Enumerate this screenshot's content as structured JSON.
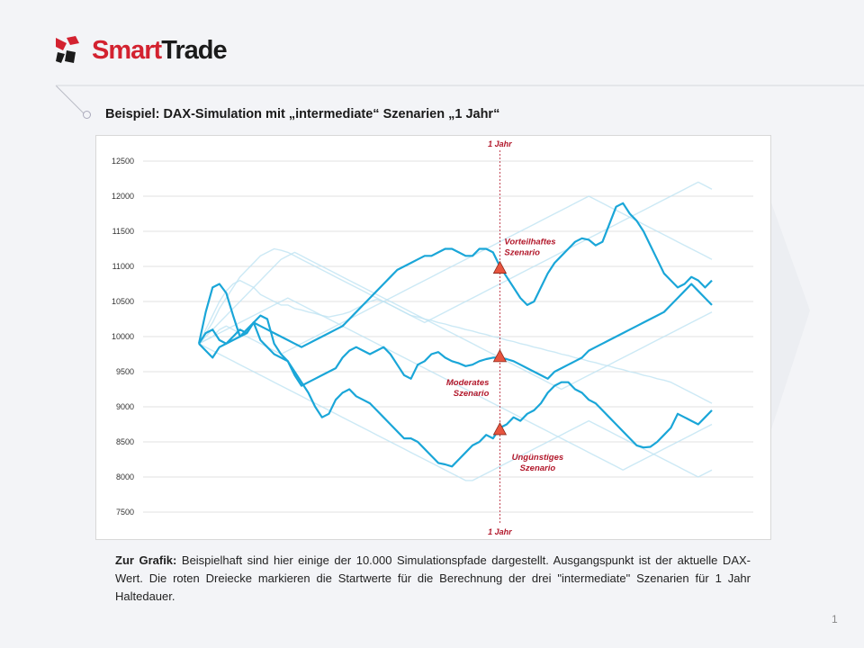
{
  "brand": {
    "part1": "Smart",
    "part2": "Trade",
    "red": "#d32230",
    "dark": "#1b1b1b"
  },
  "slide": {
    "title": "Beispiel: DAX-Simulation mit „intermediate“ Szenarien „1 Jahr“",
    "caption_lead": "Zur Grafik:",
    "caption_text": " Beispielhaft sind hier einige der 10.000 Simulationspfade dargestellt. Ausgangspunkt ist der aktuelle DAX-Wert. Die roten Dreiecke markieren die Startwerte für die Berechnung der drei \"intermediate\" Szenarien für 1 Jahr Haltedauer.",
    "page_number": "1"
  },
  "chart_data": {
    "type": "line",
    "ylim": [
      7500,
      12500
    ],
    "y_ticks": [
      "12500",
      "12000",
      "11500",
      "11000",
      "10500",
      "10000",
      "9500",
      "9000",
      "8500",
      "8000",
      "7500"
    ],
    "grid": true,
    "x_steps": 76,
    "marker_step": 44,
    "marker_label_top": "1 Jahr",
    "marker_label_bottom": "1 Jahr",
    "colors": {
      "highlight": "#1aa6d8",
      "faded": "#bfe3f2",
      "marker": "#e8553f",
      "annot": "#b2182b",
      "grid": "#e2e2e2"
    },
    "highlight_series": [
      {
        "values": [
          9900,
          10350,
          10700,
          10750,
          10620,
          10300,
          10000,
          10050,
          10200,
          9950,
          9850,
          9750,
          9700,
          9650,
          9500,
          9350,
          9200,
          9000,
          8850,
          8900,
          9100,
          9200,
          9250,
          9150,
          9100,
          9050,
          8950,
          8850,
          8750,
          8650,
          8550,
          8550,
          8500,
          8400,
          8300,
          8200,
          8180,
          8150,
          8250,
          8350,
          8450,
          8500,
          8600,
          8550,
          8700,
          8750,
          8850,
          8800,
          8900,
          8950,
          9050,
          9200,
          9300,
          9350,
          9350,
          9250,
          9200,
          9100,
          9050,
          8950,
          8850,
          8750,
          8650,
          8550,
          8450,
          8420,
          8430,
          8500,
          8600,
          8700,
          8900,
          8850,
          8800,
          8750,
          8850,
          8950
        ]
      },
      {
        "values": [
          9900,
          9800,
          9700,
          9850,
          9900,
          9950,
          10000,
          10100,
          10200,
          10150,
          10100,
          10050,
          10000,
          9950,
          9900,
          9850,
          9900,
          9950,
          10000,
          10050,
          10100,
          10150,
          10250,
          10350,
          10450,
          10550,
          10650,
          10750,
          10850,
          10950,
          11000,
          11050,
          11100,
          11150,
          11150,
          11200,
          11250,
          11250,
          11200,
          11150,
          11150,
          11250,
          11250,
          11200,
          11000,
          10850,
          10700,
          10550,
          10450,
          10500,
          10700,
          10900,
          11050,
          11150,
          11250,
          11350,
          11400,
          11380,
          11300,
          11350,
          11600,
          11850,
          11900,
          11750,
          11650,
          11500,
          11300,
          11100,
          10900,
          10800,
          10700,
          10750,
          10850,
          10800,
          10700,
          10800
        ]
      },
      {
        "values": [
          9900,
          10050,
          10100,
          9950,
          9900,
          10000,
          10100,
          10050,
          10200,
          10300,
          10250,
          9900,
          9750,
          9650,
          9450,
          9300,
          9350,
          9400,
          9450,
          9500,
          9550,
          9700,
          9800,
          9850,
          9800,
          9750,
          9800,
          9850,
          9750,
          9600,
          9450,
          9400,
          9600,
          9650,
          9750,
          9780,
          9700,
          9650,
          9620,
          9580,
          9600,
          9650,
          9680,
          9700,
          9700,
          9680,
          9650,
          9600,
          9550,
          9500,
          9450,
          9400,
          9500,
          9550,
          9600,
          9650,
          9700,
          9800,
          9850,
          9900,
          9950,
          10000,
          10050,
          10100,
          10150,
          10200,
          10250,
          10300,
          10350,
          10450,
          10550,
          10650,
          10750,
          10650,
          10550,
          10450
        ]
      }
    ],
    "faded_series": [
      {
        "values": [
          9900,
          10100,
          10300,
          10500,
          10650,
          10750,
          10800,
          10750,
          10700,
          10600,
          10550,
          10500,
          10450,
          10450,
          10400,
          10380,
          10350,
          10330,
          10300,
          10280,
          10300,
          10320,
          10350,
          10400,
          10450,
          10500,
          10530,
          10500,
          10450,
          10400,
          10350,
          10300,
          10280,
          10250,
          10230,
          10200,
          10180,
          10150,
          10130,
          10100,
          10080,
          10050,
          10030,
          10000,
          9980,
          9950,
          9930,
          9900,
          9880,
          9850,
          9830,
          9800,
          9780,
          9750,
          9730,
          9700,
          9680,
          9650,
          9630,
          9600,
          9580,
          9550,
          9530,
          9500,
          9480,
          9450,
          9430,
          9400,
          9380,
          9350,
          9300,
          9250,
          9200,
          9150,
          9100,
          9050
        ]
      },
      {
        "values": [
          9900,
          10050,
          10200,
          10400,
          10550,
          10700,
          10850,
          10950,
          11050,
          11150,
          11200,
          11250,
          11230,
          11200,
          11150,
          11100,
          11050,
          11000,
          10950,
          10900,
          10850,
          10800,
          10750,
          10700,
          10650,
          10600,
          10550,
          10500,
          10450,
          10400,
          10350,
          10300,
          10250,
          10200,
          10250,
          10300,
          10350,
          10400,
          10450,
          10500,
          10550,
          10600,
          10650,
          10700,
          10750,
          10800,
          10850,
          10900,
          10950,
          11000,
          11050,
          11100,
          11150,
          11200,
          11250,
          11300,
          11350,
          11400,
          11450,
          11500,
          11550,
          11600,
          11650,
          11700,
          11750,
          11800,
          11850,
          11900,
          11950,
          12000,
          12050,
          12100,
          12150,
          12200,
          12150,
          12100
        ]
      },
      {
        "values": [
          9900,
          9950,
          10000,
          10100,
          10150,
          10100,
          10050,
          10000,
          9950,
          9900,
          9850,
          9800,
          9750,
          9800,
          9850,
          9900,
          9950,
          10000,
          10050,
          10100,
          10150,
          10200,
          10250,
          10300,
          10350,
          10400,
          10450,
          10500,
          10550,
          10600,
          10650,
          10700,
          10750,
          10800,
          10850,
          10900,
          10950,
          11000,
          11050,
          11100,
          11150,
          11200,
          11250,
          11300,
          11350,
          11400,
          11450,
          11500,
          11550,
          11600,
          11650,
          11700,
          11750,
          11800,
          11850,
          11900,
          11950,
          12000,
          11950,
          11900,
          11850,
          11800,
          11750,
          11700,
          11650,
          11600,
          11550,
          11500,
          11450,
          11400,
          11350,
          11300,
          11250,
          11200,
          11150,
          11100
        ]
      },
      {
        "values": [
          9900,
          9850,
          9800,
          9750,
          9700,
          9650,
          9600,
          9550,
          9500,
          9450,
          9400,
          9350,
          9300,
          9250,
          9200,
          9150,
          9100,
          9050,
          9000,
          8950,
          8900,
          8850,
          8800,
          8750,
          8700,
          8650,
          8600,
          8550,
          8500,
          8450,
          8400,
          8350,
          8300,
          8250,
          8200,
          8150,
          8100,
          8050,
          8000,
          7950,
          7950,
          8000,
          8050,
          8100,
          8150,
          8200,
          8250,
          8300,
          8350,
          8400,
          8450,
          8500,
          8550,
          8600,
          8650,
          8700,
          8750,
          8800,
          8750,
          8700,
          8650,
          8600,
          8550,
          8500,
          8450,
          8400,
          8350,
          8300,
          8250,
          8200,
          8150,
          8100,
          8050,
          8000,
          8050,
          8100
        ]
      },
      {
        "values": [
          9900,
          10000,
          10100,
          10200,
          10300,
          10400,
          10500,
          10600,
          10700,
          10800,
          10900,
          11000,
          11100,
          11150,
          11200,
          11150,
          11100,
          11050,
          11000,
          10950,
          10900,
          10850,
          10800,
          10750,
          10700,
          10650,
          10600,
          10550,
          10500,
          10450,
          10400,
          10350,
          10300,
          10250,
          10200,
          10150,
          10100,
          10050,
          10000,
          9950,
          9900,
          9850,
          9800,
          9750,
          9700,
          9650,
          9600,
          9550,
          9500,
          9450,
          9400,
          9350,
          9300,
          9250,
          9300,
          9350,
          9400,
          9450,
          9500,
          9550,
          9600,
          9650,
          9700,
          9750,
          9800,
          9850,
          9900,
          9950,
          10000,
          10050,
          10100,
          10150,
          10200,
          10250,
          10300,
          10350
        ]
      },
      {
        "values": [
          9900,
          9950,
          10000,
          10050,
          10100,
          10150,
          10200,
          10250,
          10300,
          10350,
          10400,
          10450,
          10500,
          10550,
          10500,
          10450,
          10400,
          10350,
          10300,
          10250,
          10200,
          10150,
          10100,
          10050,
          10000,
          9950,
          9900,
          9850,
          9800,
          9750,
          9700,
          9650,
          9600,
          9550,
          9500,
          9450,
          9400,
          9350,
          9300,
          9250,
          9200,
          9150,
          9100,
          9050,
          9000,
          8950,
          8900,
          8850,
          8800,
          8750,
          8700,
          8650,
          8600,
          8550,
          8500,
          8450,
          8400,
          8350,
          8300,
          8250,
          8200,
          8150,
          8100,
          8150,
          8200,
          8250,
          8300,
          8350,
          8400,
          8450,
          8500,
          8550,
          8600,
          8650,
          8700,
          8750
        ]
      }
    ],
    "markers": [
      {
        "label_line1": "Vorteilhaftes",
        "label_line2": "Szenario",
        "value": 10980,
        "label_pos": "right-above"
      },
      {
        "label_line1": "Moderates",
        "label_line2": "Szenario",
        "value": 9720,
        "label_pos": "left-below"
      },
      {
        "label_line1": "Ungünstiges",
        "label_line2": "Szenario",
        "value": 8680,
        "label_pos": "right-below"
      }
    ]
  }
}
